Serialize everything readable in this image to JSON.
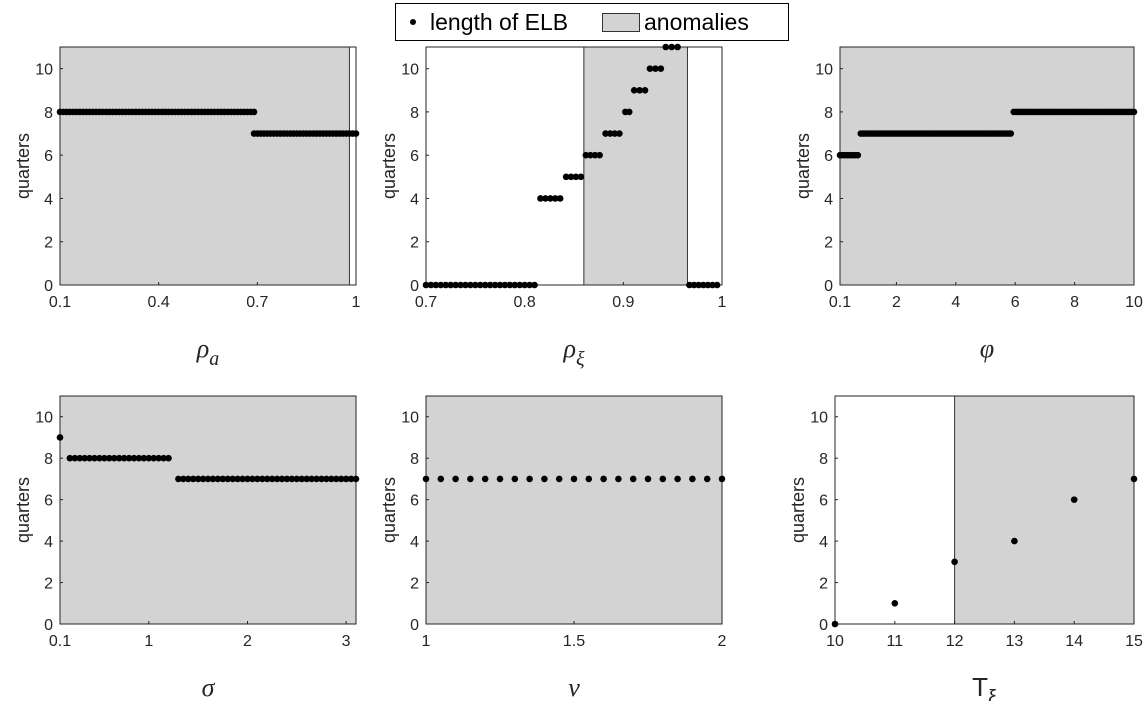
{
  "legend": {
    "elb_label": "length of ELB",
    "anomalies_label": "anomalies",
    "marker_color": "#000000",
    "shade_color": "#d3d3d3"
  },
  "chart_data": [
    {
      "type": "scatter",
      "id": "rho-a",
      "xlabel": "ρ",
      "xlabel_sub": "a",
      "xlabel_italic": true,
      "ylabel": "quarters",
      "xlim": [
        0.1,
        1.0
      ],
      "ylim": [
        0,
        11
      ],
      "xticks": [
        0.1,
        0.4,
        0.7,
        1
      ],
      "xtick_labels": [
        "0.1",
        "0.4",
        "0.7",
        "1"
      ],
      "yticks": [
        0,
        2,
        4,
        6,
        8,
        10
      ],
      "anomaly_regions": [
        [
          0.1,
          0.98
        ]
      ],
      "segments": [
        {
          "from": 0.1,
          "to": 0.69,
          "y": 8,
          "count": 60
        },
        {
          "from": 0.69,
          "to": 1.0,
          "y": 7,
          "count": 32
        }
      ],
      "points": []
    },
    {
      "type": "scatter",
      "id": "rho-xi",
      "xlabel": "ρ",
      "xlabel_sub": "ξ",
      "xlabel_italic": true,
      "ylabel": "quarters",
      "xlim": [
        0.7,
        1.0
      ],
      "ylim": [
        0,
        11
      ],
      "xticks": [
        0.7,
        0.8,
        0.9,
        1
      ],
      "xtick_labels": [
        "0.7",
        "0.8",
        "0.9",
        "1"
      ],
      "yticks": [
        0,
        2,
        4,
        6,
        8,
        10
      ],
      "anomaly_regions": [
        [
          0.86,
          0.965
        ]
      ],
      "segments": [
        {
          "from": 0.7,
          "to": 0.81,
          "y": 0,
          "count": 23
        },
        {
          "from": 0.816,
          "to": 0.836,
          "y": 4,
          "count": 5
        },
        {
          "from": 0.842,
          "to": 0.857,
          "y": 5,
          "count": 4
        },
        {
          "from": 0.862,
          "to": 0.876,
          "y": 6,
          "count": 4
        },
        {
          "from": 0.882,
          "to": 0.896,
          "y": 7,
          "count": 4
        },
        {
          "from": 0.902,
          "to": 0.906,
          "y": 8,
          "count": 2
        },
        {
          "from": 0.911,
          "to": 0.922,
          "y": 9,
          "count": 3
        },
        {
          "from": 0.927,
          "to": 0.938,
          "y": 10,
          "count": 3
        },
        {
          "from": 0.943,
          "to": 0.955,
          "y": 11,
          "count": 3
        },
        {
          "from": 0.967,
          "to": 0.995,
          "y": 0,
          "count": 7
        }
      ],
      "points": []
    },
    {
      "type": "scatter",
      "id": "phi",
      "xlabel": "φ",
      "xlabel_sub": "",
      "xlabel_italic": true,
      "ylabel": "quarters",
      "xlim": [
        0.1,
        10
      ],
      "ylim": [
        0,
        11
      ],
      "xticks": [
        0.1,
        2,
        4,
        6,
        8,
        10
      ],
      "xtick_labels": [
        "0.1",
        "2",
        "4",
        "6",
        "8",
        "10"
      ],
      "yticks": [
        0,
        2,
        4,
        6,
        8,
        10
      ],
      "anomaly_regions": [
        [
          0.1,
          10
        ]
      ],
      "segments": [
        {
          "from": 0.1,
          "to": 0.7,
          "y": 6,
          "count": 8
        },
        {
          "from": 0.8,
          "to": 5.85,
          "y": 7,
          "count": 60
        },
        {
          "from": 5.95,
          "to": 10,
          "y": 8,
          "count": 50
        }
      ],
      "points": []
    },
    {
      "type": "scatter",
      "id": "sigma",
      "xlabel": "σ",
      "xlabel_sub": "",
      "xlabel_italic": true,
      "ylabel": "quarters",
      "xlim": [
        0.1,
        3.1
      ],
      "ylim": [
        0,
        11
      ],
      "xticks": [
        0.1,
        1,
        2,
        3
      ],
      "xtick_labels": [
        "0.1",
        "1",
        "2",
        "3"
      ],
      "yticks": [
        0,
        2,
        4,
        6,
        8,
        10
      ],
      "anomaly_regions": [
        [
          0.1,
          3.1
        ]
      ],
      "segments": [
        {
          "from": 0.2,
          "to": 1.2,
          "y": 8,
          "count": 21
        },
        {
          "from": 1.3,
          "to": 3.1,
          "y": 7,
          "count": 37
        }
      ],
      "points": [
        {
          "x": 0.1,
          "y": 9
        }
      ]
    },
    {
      "type": "scatter",
      "id": "nu",
      "xlabel": "ν",
      "xlabel_sub": "",
      "xlabel_italic": true,
      "ylabel": "quarters",
      "xlim": [
        1,
        2
      ],
      "ylim": [
        0,
        11
      ],
      "xticks": [
        1,
        1.5,
        2
      ],
      "xtick_labels": [
        "1",
        "1.5",
        "2"
      ],
      "yticks": [
        0,
        2,
        4,
        6,
        8,
        10
      ],
      "anomaly_regions": [
        [
          1,
          2
        ]
      ],
      "segments": [
        {
          "from": 1,
          "to": 2,
          "y": 7,
          "count": 21
        }
      ],
      "points": []
    },
    {
      "type": "scatter",
      "id": "t-xi",
      "xlabel": "T",
      "xlabel_sub": "ξ",
      "xlabel_italic": false,
      "ylabel": "quarters",
      "xlim": [
        10,
        15
      ],
      "ylim": [
        0,
        11
      ],
      "xticks": [
        10,
        11,
        12,
        13,
        14,
        15
      ],
      "xtick_labels": [
        "10",
        "11",
        "12",
        "13",
        "14",
        "15"
      ],
      "yticks": [
        0,
        2,
        4,
        6,
        8,
        10
      ],
      "anomaly_regions": [
        [
          12,
          15
        ]
      ],
      "segments": [],
      "points": [
        {
          "x": 10,
          "y": 0
        },
        {
          "x": 11,
          "y": 1
        },
        {
          "x": 12,
          "y": 3
        },
        {
          "x": 13,
          "y": 4
        },
        {
          "x": 14,
          "y": 6
        },
        {
          "x": 15,
          "y": 7
        }
      ]
    }
  ]
}
